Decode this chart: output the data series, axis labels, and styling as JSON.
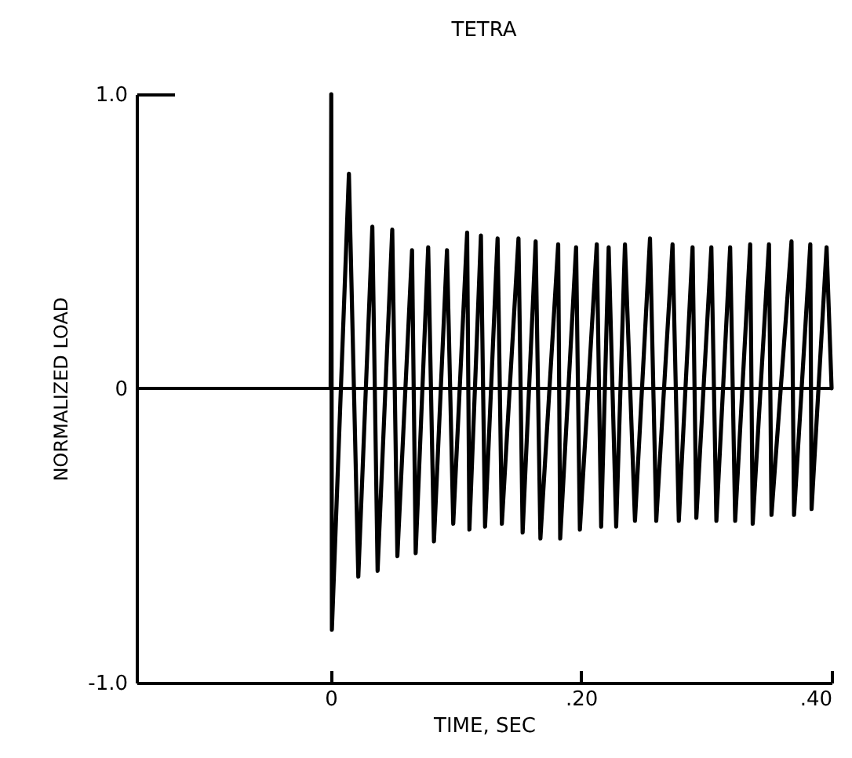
{
  "chart_data": {
    "type": "line",
    "title": "TETRA",
    "xlabel": "TIME, SEC",
    "ylabel": "NORMALIZED LOAD",
    "xlim": [
      -0.155,
      0.4
    ],
    "xticks": [
      0,
      {
        "value": 0.2,
        "label": ".20"
      },
      {
        "value": 0.4,
        "label": ".40"
      }
    ],
    "ylim": [
      -1,
      1
    ],
    "yticks": [
      {
        "value": -1,
        "label": "-1.0"
      },
      0,
      {
        "value": 1,
        "label": "1.0"
      }
    ],
    "grid": false,
    "marker": "none",
    "line_style": "solid",
    "ref_lines": [
      {
        "axis": "y",
        "value": 0,
        "color": "#000000"
      }
    ],
    "series": [
      {
        "color": "#000000",
        "x": [
          0,
          0.0005,
          0.001,
          0.0146,
          0.0221,
          0.0333,
          0.0375,
          0.0492,
          0.0533,
          0.065,
          0.0679,
          0.0779,
          0.0825,
          0.0929,
          0.0979,
          0.109,
          0.1108,
          0.12,
          0.1233,
          0.1333,
          0.1367,
          0.15,
          0.1533,
          0.1637,
          0.1675,
          0.1817,
          0.1833,
          0.196,
          0.199,
          0.2125,
          0.216,
          0.222,
          0.228,
          0.235,
          0.243,
          0.255,
          0.26,
          0.273,
          0.278,
          0.289,
          0.292,
          0.304,
          0.308,
          0.319,
          0.323,
          0.335,
          0.337,
          0.35,
          0.352,
          0.368,
          0.37,
          0.383,
          0.384,
          0.396,
          0.4
        ],
        "values": [
          0,
          1.0,
          -0.82,
          0.73,
          -0.64,
          0.55,
          -0.62,
          0.54,
          -0.57,
          0.47,
          -0.56,
          0.48,
          -0.52,
          0.47,
          -0.46,
          0.53,
          -0.48,
          0.52,
          -0.47,
          0.51,
          -0.46,
          0.51,
          -0.49,
          0.5,
          -0.51,
          0.49,
          -0.51,
          0.48,
          -0.48,
          0.49,
          -0.47,
          0.48,
          -0.47,
          0.49,
          -0.45,
          0.51,
          -0.45,
          0.49,
          -0.45,
          0.48,
          -0.44,
          0.48,
          -0.45,
          0.48,
          -0.45,
          0.49,
          -0.46,
          0.49,
          -0.43,
          0.5,
          -0.43,
          0.49,
          -0.41,
          0.48,
          0
        ]
      }
    ]
  }
}
